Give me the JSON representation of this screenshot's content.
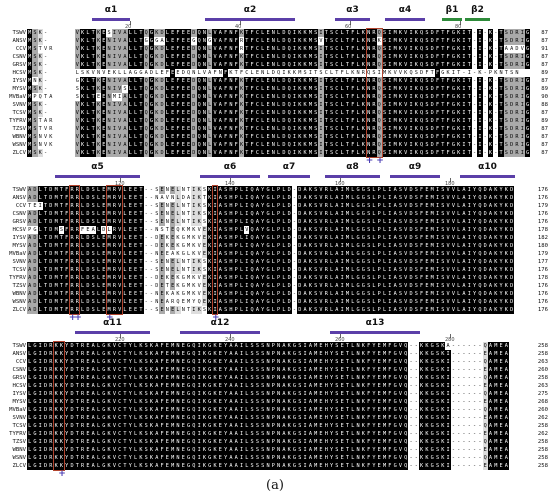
{
  "caption": "(a)",
  "colors": {
    "helix": "#5b3fa8",
    "strand": "#2e8b3a",
    "box": "#b3452f",
    "plus": "#4b3db3"
  },
  "species": [
    "TSWV",
    "ANSV",
    "CCV",
    "CSNV",
    "GRSV",
    "HCSV",
    "IYSV",
    "MYSV",
    "MVBaV",
    "SVNV",
    "TCSV",
    "TYFRV",
    "TZSV",
    "WBNV",
    "WSNV",
    "ZLCV"
  ],
  "blocks": [
    {
      "labels": [
        {
          "text": "α1",
          "x1": 92,
          "x2": 130
        },
        {
          "text": "α2",
          "x1": 205,
          "x2": 295
        },
        {
          "text": "α3",
          "x1": 335,
          "x2": 370
        },
        {
          "text": "α4",
          "x1": 385,
          "x2": 425
        },
        {
          "text": "β1",
          "x1": 442,
          "x2": 462,
          "type": "strand"
        },
        {
          "text": "β2",
          "x1": 465,
          "x2": 490,
          "type": "strand"
        }
      ],
      "ticks": [
        {
          "text": "20",
          "x": 130
        },
        {
          "text": "40",
          "x": 240
        },
        {
          "text": "60",
          "x": 350
        },
        {
          "text": "80",
          "x": 460
        }
      ],
      "seqs": [
        "MSK-.....VKLTKESIVALLTQGKDLEFEEDQNLVAFNFKTFCLENLDQIKKMSITSCLTFLKNRQSIMKVIKQSDFTFGKIT-I-K-TSDRIG",
        "MSK-.....VKLTKENIVALLTGGGALEFEEGQNGVAFNFRTFCLENLDQIKKMSVTSCLTFLKNRKSIMKVIKQSDFTFGKIT-I-K-TSDRIG",
        "MSTVR....VKLTKENIVALLTQGKDLEFEEDQNLVAFNFRTFCLENLDQIKKMSITSCLTFLKNRQSIMKVIKQSDFTFGKIT-I-K-TAADVG",
        "MSK-.....VKLTKENIVALLTQGKDLEFEEDQNLVAFNFKTFCLENLDQIKKMSITSCLTFLKNRQSIMKVIKQSDFTFGKIT-I-K-TSDRIG",
        "MSK-.....VKLTKENIVALLTQGKDLEFEEDQNLVAFNFKTFCLENLDQIKKMSITSCLTFLKNRQSIMKVIKQSDFTFGKIT-I-K-TSDRIG",
        "MSK-.....LSKVNVEKLLAGGADLEFEEDQNLVAFNFKTFCLENLDQIKKMSITSCLTFLKNRQSIMKVVKQSDFTFGKIT-I-K-PKNTSN",
        "MNK-.....GKLTKENIVALLTQGKDLEFEEDQNLVAFNFKTFCLENLDQIKKMSITSCLTFLKNRQSIMKVIKQSDFTFGKIT-I-K-TSDRIG",
        "MSK-.....SKLTKENIVSLLTQGKDLEFEEDQNLVAFNFKTFCLENLDQIKKMSITSCLTFLKNRQSIMKVIKQSDFTFGKIT-I-K-TSDRIG",
        "MPQTA....SKLTEENMIALLTQGKDLEFEEDQNLVAFNFKTFCLENLDQIKKMSITSCLTFLKNRQSIMKVIKQSDFTFGKIT-I-K-TSDRIG",
        "MSK-.....VKLTKENIVALLTQGKDLEFEEDQNLVAFNFKTFCLENLDQIKKMSITSCLTFLKNRQSIMKVIKQSDFTFGKIT-I-K-TSDRIG",
        "MSK-.....VKLTKENIVALLTQGKDLEFEEDQNLVAFNFKTFCLENLDQIKKMSITSCLTFLKNRQSIMKVIKQSDFTFGKIT-I-K-TSDRIG",
        "MSTAR....VKLTKENIVALLTQGKDLEFEEDQNLVAFNFKTFCLENLDQIKKMSITSCLTFLKNRQSIMKVIKQSDFTFGKIT-I-K-TSDRIG",
        "MSTVR....VKLTKENIVALLTQGKDLEFEEDQNLVAFNFKTFCLENLDQIKKMSITSCLTFLKNRQSIMKVIKQSDFTFGKIT-I-K-TSDRIG",
        "MSNVK....VKLTKENIVALLTQGKDLEFEEDQNLVAFNFKTFCLENLDQIKKMSITSCLTFLKNRQSIMKVIKQSDFTFGKIT-I-K-TSDRIG",
        "MSNVK....VKLTKENIVALLTQGKDLEFEEDQNLVAFNFKTFCLENLDQIKKMSITSCLTFLKNRQSIMKVIKQSDFTFGKIT-I-K-TSDRIG",
        "MSK-.....VKLTKENIVALLTQGKDLEFEEDQNLVAFNFKTFCLENLDQIKKMSITSCLTFLKNRQSIMKVIKQSDFTFGKIT-I-K-TSDRIG"
      ],
      "ends": [
        "87",
        "87",
        "91",
        "87",
        "87",
        "89",
        "87",
        "89",
        "90",
        "88",
        "87",
        "89",
        "87",
        "87",
        "87",
        "87"
      ],
      "boxes": [
        {
          "c1": 64,
          "c2": 66
        }
      ],
      "plus": [
        {
          "c": 64
        },
        {
          "c": 66
        }
      ]
    },
    {
      "labels": [
        {
          "text": "α5",
          "x1": 55,
          "x2": 140
        },
        {
          "text": "α6",
          "x1": 200,
          "x2": 260
        },
        {
          "text": "α7",
          "x1": 268,
          "x2": 310
        },
        {
          "text": "α8",
          "x1": 325,
          "x2": 380
        },
        {
          "text": "α9",
          "x1": 390,
          "x2": 440
        },
        {
          "text": "α10",
          "x1": 460,
          "x2": 515
        }
      ],
      "ticks": [
        {
          "text": "120",
          "x": 120
        },
        {
          "text": "140",
          "x": 230
        },
        {
          "text": "160",
          "x": 340
        },
        {
          "text": "180",
          "x": 450
        }
      ],
      "seqs": [
        "ADLTDMTFRRLDSLEMRVLEET--SENELNTIKSKIASHPLIQAYGLPLD-DAKSVRLAIMLGGSLPLIASVDSFEMISVVLAIYQDAKYKD",
        "ADLTDMTFRRLDSLEMRVLEET--NAVNLDAIKTKIASHPLIQAYGLPLD-DAKSVRLAIMLGGSLPLIASVDSFEMISVVLAIYQDAKYKD",
        "TEITDMTFRRLDSLEMRVLEET--SENELNTIKSKIASHPLIQAYGLPLD-DAKSVRLAIMLGGSLPLIASVDSFEMISVVLAIYQDAKYKD",
        "ADLTDMTFRRLDSLEMRVLEET--SENELNTIKSKIASHPLIQAYGLPLD-DAKSVRLAIMLGGSLPLIASVDSFEMISVVLAIYQDAKYKD",
        "ADLTDMTFRRLDSLEMRVLEET--SENELNTIKSKIASHPLIQAYGLPLD-DAKSVRLAIMLGGSLPLIASVDSFEMISVVLAIYQDAKYKD",
        "PGLTDMSFRRFEALDLRVLEET--NSTEQKMKVEKIASHPLVQAYGLPLD-DAKSVRLAIMLGGSLPLIASVDSFEMISVVLAIYQDAKYKD",
        "ADLTDMTFRRLDSLEMRVLEET--DEKEKGMKVEKIASHPLIQAYGLPLD-DAKSVRLAIMLGGSLPLIASVDSFEMISVVLAIYQDAKYKD",
        "ADLTDMTFRRLDSLEMRVLEET--DEKEKGMKVEKIASHPLIQAYGLPLD-DAKSVRLAIMLGGSLPLIASVDSFEMISVVLAIYQDAKYKD",
        "ADLTDMTFRRLDSLEMRVLEET--NEEAKGLKVEKIASHPLIQAYGLPLD-DAKSVRLAIMLGGSLPLIASVDSFEMISVVLAIYQDAKYKD",
        "ADLTDMTFRRLDSLEMRVLEET--SENELNTIKSKIASHPLIQAYGLPLD-DAKSVRLAIMLGGSLPLIASVDSFEMISVVLAIYQDAKYKD",
        "ADLTDMTFRRLDSLEMRVLEET--SENELNTIKSKIASHPLIQAYGLPLD-DAKSVRLAIMLGGSLPLIASVDSFEMISVVLAIYQDAKYKD",
        "ADLTDMTFRRLDSLEMRVLEET--DEKEKGMKVEKIASHPLIQAYGLPLD-DAKSVRLAIMLGGSLPLIASVDSFEMISVVLAIYQDAKYKD",
        "ADLTDMTFRRLDSLEMRVLEET--DETEKGMKVEKIASHPLIQAYGLPLD-DAKSVRLAIMLGGSLPLIASVDSFEMISVVLAIYQDAKYKD",
        "ADLTDMTFRRLDSLEMRVLEET--NEKAKGMKVEKIASHPLIQAYGLPLD-DAKSVRLAIMLGGSLPLIASVDSFEMISVVLAIYQDAKYKD",
        "ADLTDMTFRRLDSLEMRVLEET--NEARQEMYQEKIASHPLIQAYGLPLD-DAKSVRLAIMLGGSLPLIASVDSFEMISVVLAIYQDAKYKD",
        "ADLTDMTFRRLDSLEMRVLEET--SENELNTIKSKIASHPLIQAYGLPLD-DAKSVRLAIMLGGSLPLIASVDSFEMISVVLAIYQDAKYKD"
      ],
      "ends": [
        "176",
        "176",
        "179",
        "176",
        "176",
        "178",
        "182",
        "180",
        "179",
        "177",
        "176",
        "178",
        "176",
        "176",
        "176",
        "176"
      ],
      "boxes": [
        {
          "c1": 8,
          "c2": 9
        },
        {
          "c1": 15,
          "c2": 17
        },
        {
          "c1": 35,
          "c2": 35
        }
      ],
      "plus": [
        {
          "c": 8
        },
        {
          "c": 9
        },
        {
          "c": 15
        },
        {
          "c": 35
        }
      ]
    },
    {
      "labels": [
        {
          "text": "α11",
          "x1": 75,
          "x2": 150
        },
        {
          "text": "α12",
          "x1": 180,
          "x2": 260
        },
        {
          "text": "α13",
          "x1": 330,
          "x2": 420
        }
      ],
      "ticks": [
        {
          "text": "220",
          "x": 120
        },
        {
          "text": "240",
          "x": 230
        },
        {
          "text": "260",
          "x": 340
        },
        {
          "text": "280",
          "x": 450
        }
      ],
      "seqs": [
        "LGIDRKKYDTREALGKVCTYLKSKAFEMNEGQIKGKEYAAILSSSNPNAKGSIAMEHYSETLNKFYEMFGVQ--KKGSKA------QAMEA",
        "LGIDRKKYDTREALGKVCTYLKSKAFEMNEGQIKGKEYAAILSSSNPNAKGSIAMEHYSETLNKFYEMFGVQ--KKGSKI------EAMEA",
        "LGIDRKKYDTREALGKVCTYLKSKAFEMNEGQIKGKEYAAILSSSNPNAKGSIAMEHYSETLNKFYEMFGVQ--KKGSKI------QAMEA",
        "LGIDRKKYDTREALGKVCTYLKSKAFEMNEGQIKGKEYAAILSSSNPNAKGSIAMEHYSETLNKFYEMFGVQ--KKGSKI------EAMEA",
        "LGIDRKKYDTREALGKVCTYLKSKAFEMNEGQIKGKEYAAILSSSNPNAKGSIAMEHYSETLNKFYEMFGVQ--KKGSKI------QAMEA",
        "LGIDRKKYDTREALGKVCTYLKSKAFEMNEGQIKGKEYAAILSSSNPNAKGSIAMEHYSETLNKFYEMFGVQ--KKGSKI------EAMEA",
        "LGIDRKKYDTREALGKVCTYLKSKAFEMNEGQIKGKEYAAILSSSNPNAKGSIAMEHYSETLNKFYEMFGVQ--KKGSKI------QAMEA",
        "LGIDRKKYDTREALGKVCTYLKSKAFEMNEGQIKGKEYAAILSSSNPNAKGSIAMEHYSETLNKFYEMFGVQ--KKGSKI------EAMEA",
        "LGIDRKKYDTREALGKVCTYLKSKAFEMNEGQIKGKEYAAILSSSNPNAKGSIAMEHYSETLNKFYEMFGVQ--KKGSKI------QAMEA",
        "LGIDRKKYDTREALGKVCTYLKSKAFEMNEGQIKGKEYAAILSSSNPNAKGSIAMEHYSETLNKFYEMFGVQ--KKGSKI------EAMEA",
        "LGIDRKKYDTREALGKVCTYLKSKAFEMNEGQIKGKEYAAILSSSNPNAKGSIAMEHYSETLNKFYEMFGVQ--KKGSKI------QAMEA",
        "LGIDRKKYDTREALGKVCTYLKSKAFEMNEGQIKGKEYAAILSSSNPNAKGSIAMEHYSETLNKFYEMFGVQ--KKGSKI------EAMEA",
        "LGIDRKKYDTREALGKVCTYLKSKAFEMNEGQIKGKEYAAILSSSNPNAKGSIAMEHYSETLNKFYEMFGVQ--KKGSKI------QAMEA",
        "LGIDRKKYDTREALGKVCTYLKSKAFEMNEGQIKGKEYAAILSSSNPNAKGSIAMEHYSETLNKFYEMFGVQ--KKGSKI------EAMEA",
        "LGIDRKKYDTREALGKVCTYLKSKAFEMNEGQIKGKEYAAILSSSNPNAKGSIAMEHYSETLNKFYEMFGVQ--KKGSKI------QAMEA",
        "LGIDRKKYDTREALGKVCTYLKSKAFEMNEGQIKGKEYAAILSSSNPNAKGSIAMEHYSETLNKFYEMFGVQ--KKGSKI------EAMEA"
      ],
      "ends": [
        "258",
        "258",
        "263",
        "260",
        "258",
        "263",
        "275",
        "268",
        "260",
        "262",
        "258",
        "262",
        "258",
        "258",
        "258",
        "258"
      ],
      "boxes": [
        {
          "c1": 5,
          "c2": 6
        }
      ],
      "plus": [
        {
          "c": 6
        }
      ]
    }
  ]
}
